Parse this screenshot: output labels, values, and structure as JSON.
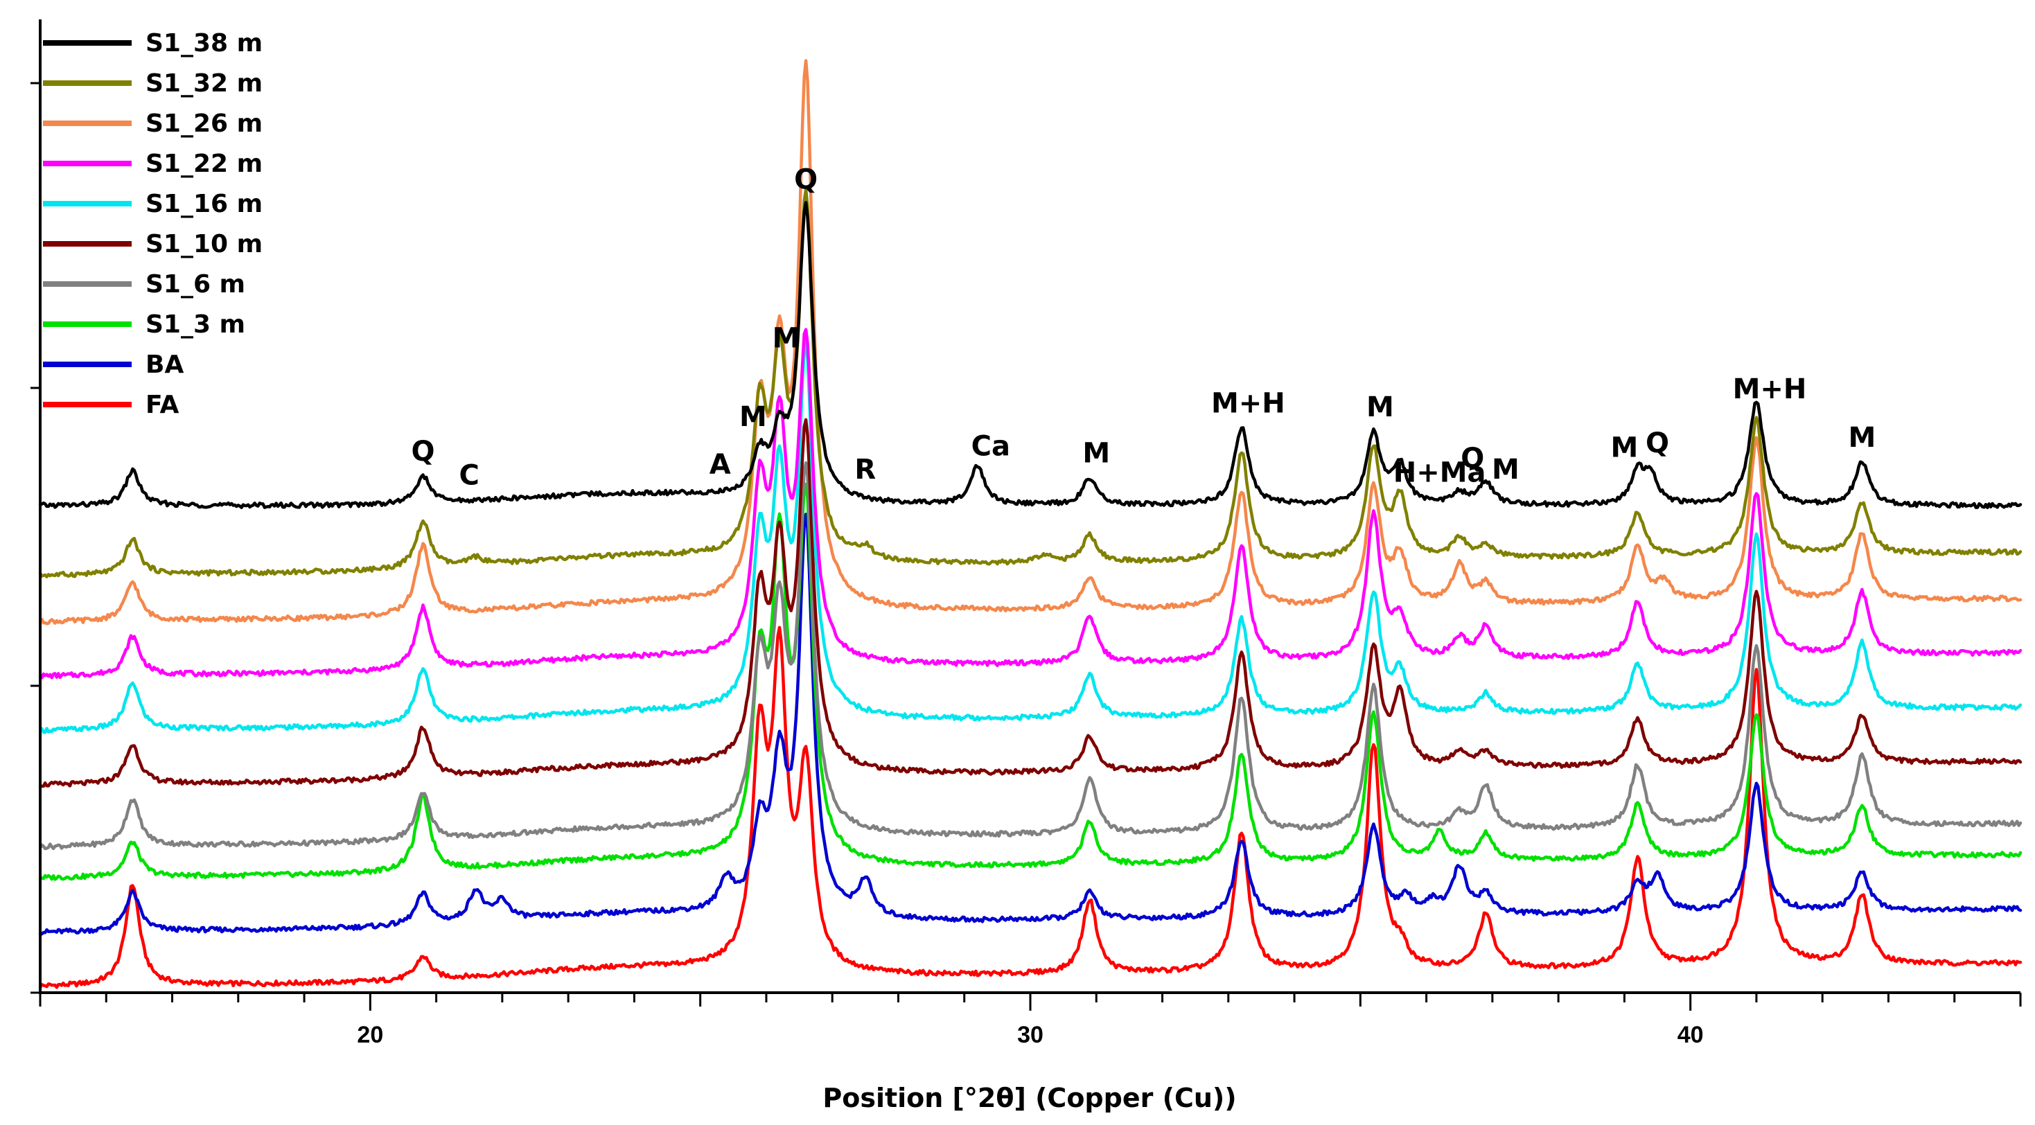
{
  "chart_data": {
    "type": "line",
    "title": "",
    "xlabel": "Position [°2θ] (Copper (Cu))",
    "ylabel": "",
    "xlim": [
      15,
      45
    ],
    "x_ticks": [
      20,
      30,
      40
    ],
    "x_tick_labels": [
      "20",
      "30",
      "40"
    ],
    "grid": false,
    "legend_position": "top-left",
    "series": [
      {
        "name": "S1_38 m",
        "color": "#000000",
        "offset": 1.0,
        "slope": 0.0,
        "peaks": [
          [
            16.4,
            0.09
          ],
          [
            20.8,
            0.07
          ],
          [
            25.9,
            0.1
          ],
          [
            26.2,
            0.14
          ],
          [
            26.6,
            0.75
          ],
          [
            29.2,
            0.1
          ],
          [
            30.9,
            0.07
          ],
          [
            33.2,
            0.2
          ],
          [
            35.2,
            0.18
          ],
          [
            35.6,
            0.1
          ],
          [
            36.5,
            0.03
          ],
          [
            36.9,
            0.06
          ],
          [
            39.2,
            0.08
          ],
          [
            39.4,
            0.07
          ],
          [
            41.0,
            0.27
          ],
          [
            42.6,
            0.11
          ]
        ]
      },
      {
        "name": "S1_32 m",
        "color": "#808000",
        "offset": 0.82,
        "slope": 0.002,
        "peaks": [
          [
            16.4,
            0.09
          ],
          [
            20.8,
            0.12
          ],
          [
            21.6,
            0.02
          ],
          [
            25.9,
            0.35
          ],
          [
            26.2,
            0.45
          ],
          [
            26.6,
            0.9
          ],
          [
            27.5,
            0.03
          ],
          [
            30.2,
            0.02
          ],
          [
            30.9,
            0.07
          ],
          [
            33.2,
            0.28
          ],
          [
            35.2,
            0.28
          ],
          [
            35.6,
            0.15
          ],
          [
            36.5,
            0.05
          ],
          [
            36.9,
            0.03
          ],
          [
            39.2,
            0.11
          ],
          [
            41.0,
            0.35
          ],
          [
            42.6,
            0.13
          ]
        ]
      },
      {
        "name": "S1_26 m",
        "color": "#f4874b",
        "offset": 0.7,
        "slope": 0.002,
        "peaks": [
          [
            16.4,
            0.1
          ],
          [
            20.8,
            0.18
          ],
          [
            25.9,
            0.45
          ],
          [
            26.2,
            0.55
          ],
          [
            26.6,
            1.35
          ],
          [
            30.9,
            0.08
          ],
          [
            33.2,
            0.3
          ],
          [
            35.2,
            0.3
          ],
          [
            35.6,
            0.12
          ],
          [
            36.5,
            0.1
          ],
          [
            36.9,
            0.05
          ],
          [
            39.2,
            0.14
          ],
          [
            39.6,
            0.05
          ],
          [
            41.0,
            0.42
          ],
          [
            42.6,
            0.17
          ]
        ]
      },
      {
        "name": "S1_22 m",
        "color": "#ff00ff",
        "offset": 0.56,
        "slope": 0.002,
        "peaks": [
          [
            16.4,
            0.1
          ],
          [
            20.8,
            0.16
          ],
          [
            25.9,
            0.4
          ],
          [
            26.2,
            0.55
          ],
          [
            26.6,
            0.8
          ],
          [
            30.9,
            0.12
          ],
          [
            33.2,
            0.3
          ],
          [
            35.2,
            0.37
          ],
          [
            35.6,
            0.1
          ],
          [
            36.5,
            0.05
          ],
          [
            36.9,
            0.08
          ],
          [
            39.2,
            0.14
          ],
          [
            41.0,
            0.42
          ],
          [
            42.6,
            0.16
          ]
        ]
      },
      {
        "name": "S1_16 m",
        "color": "#00e5ee",
        "offset": 0.42,
        "slope": 0.002,
        "peaks": [
          [
            16.4,
            0.12
          ],
          [
            20.8,
            0.14
          ],
          [
            25.9,
            0.4
          ],
          [
            26.2,
            0.55
          ],
          [
            26.6,
            0.9
          ],
          [
            30.9,
            0.11
          ],
          [
            33.2,
            0.25
          ],
          [
            35.2,
            0.31
          ],
          [
            35.6,
            0.1
          ],
          [
            36.9,
            0.05
          ],
          [
            39.2,
            0.12
          ],
          [
            41.0,
            0.45
          ],
          [
            42.6,
            0.17
          ]
        ]
      },
      {
        "name": "S1_10 m",
        "color": "#7f0000",
        "offset": 0.28,
        "slope": 0.002,
        "peaks": [
          [
            16.4,
            0.1
          ],
          [
            20.8,
            0.13
          ],
          [
            25.9,
            0.4
          ],
          [
            26.2,
            0.5
          ],
          [
            26.6,
            0.85
          ],
          [
            30.9,
            0.09
          ],
          [
            33.2,
            0.3
          ],
          [
            35.2,
            0.3
          ],
          [
            35.6,
            0.18
          ],
          [
            36.5,
            0.04
          ],
          [
            36.9,
            0.04
          ],
          [
            39.2,
            0.12
          ],
          [
            41.0,
            0.45
          ],
          [
            42.6,
            0.12
          ]
        ]
      },
      {
        "name": "S1_6 m",
        "color": "#808080",
        "offset": 0.12,
        "slope": 0.002,
        "peaks": [
          [
            16.4,
            0.12
          ],
          [
            20.8,
            0.12
          ],
          [
            25.9,
            0.4
          ],
          [
            26.2,
            0.5
          ],
          [
            26.6,
            0.9
          ],
          [
            30.9,
            0.14
          ],
          [
            33.2,
            0.35
          ],
          [
            35.2,
            0.37
          ],
          [
            36.5,
            0.04
          ],
          [
            36.9,
            0.11
          ],
          [
            39.2,
            0.16
          ],
          [
            41.0,
            0.47
          ],
          [
            42.6,
            0.18
          ]
        ]
      },
      {
        "name": "S1_3 m",
        "color": "#00e000",
        "offset": 0.04,
        "slope": 0.002,
        "peaks": [
          [
            16.4,
            0.09
          ],
          [
            20.8,
            0.19
          ],
          [
            25.9,
            0.45
          ],
          [
            26.2,
            0.75
          ],
          [
            26.6,
            0.9
          ],
          [
            30.9,
            0.11
          ],
          [
            33.2,
            0.28
          ],
          [
            35.2,
            0.38
          ],
          [
            36.2,
            0.07
          ],
          [
            36.9,
            0.07
          ],
          [
            39.2,
            0.14
          ],
          [
            41.0,
            0.37
          ],
          [
            42.6,
            0.13
          ]
        ]
      },
      {
        "name": "BA",
        "color": "#0000d0",
        "offset": -0.1,
        "slope": 0.002,
        "peaks": [
          [
            16.4,
            0.1
          ],
          [
            20.8,
            0.08
          ],
          [
            21.6,
            0.08
          ],
          [
            22.0,
            0.05
          ],
          [
            25.4,
            0.08
          ],
          [
            25.9,
            0.2
          ],
          [
            26.2,
            0.35
          ],
          [
            26.6,
            1.0
          ],
          [
            27.5,
            0.09
          ],
          [
            30.9,
            0.07
          ],
          [
            33.2,
            0.2
          ],
          [
            35.2,
            0.23
          ],
          [
            35.7,
            0.04
          ],
          [
            36.1,
            0.03
          ],
          [
            36.5,
            0.12
          ],
          [
            36.9,
            0.05
          ],
          [
            39.2,
            0.07
          ],
          [
            39.5,
            0.09
          ],
          [
            41.0,
            0.33
          ],
          [
            42.6,
            0.1
          ]
        ]
      },
      {
        "name": "FA",
        "color": "#ff0000",
        "offset": -0.24,
        "slope": 0.002,
        "peaks": [
          [
            16.4,
            0.26
          ],
          [
            20.8,
            0.06
          ],
          [
            25.9,
            0.55
          ],
          [
            26.2,
            0.75
          ],
          [
            26.6,
            0.5
          ],
          [
            30.9,
            0.19
          ],
          [
            33.2,
            0.36
          ],
          [
            35.2,
            0.58
          ],
          [
            35.6,
            0.05
          ],
          [
            36.9,
            0.14
          ],
          [
            39.2,
            0.28
          ],
          [
            41.0,
            0.76
          ],
          [
            42.6,
            0.18
          ]
        ]
      }
    ],
    "annotations": [
      {
        "text": "Q",
        "x": 20.8
      },
      {
        "text": "C",
        "x": 21.5
      },
      {
        "text": "A",
        "x": 25.3
      },
      {
        "text": "M",
        "x": 25.8
      },
      {
        "text": "M",
        "x": 26.3
      },
      {
        "text": "Q",
        "x": 26.6
      },
      {
        "text": "R",
        "x": 27.5
      },
      {
        "text": "Ca",
        "x": 29.4
      },
      {
        "text": "M",
        "x": 31.0
      },
      {
        "text": "M+H",
        "x": 33.3
      },
      {
        "text": "M",
        "x": 35.3
      },
      {
        "text": "H+Ma",
        "x": 36.2
      },
      {
        "text": "Q",
        "x": 36.7
      },
      {
        "text": "M",
        "x": 37.2
      },
      {
        "text": "M",
        "x": 39.0
      },
      {
        "text": "Q",
        "x": 39.5
      },
      {
        "text": "M+H",
        "x": 41.2
      },
      {
        "text": "M",
        "x": 42.6
      }
    ]
  }
}
